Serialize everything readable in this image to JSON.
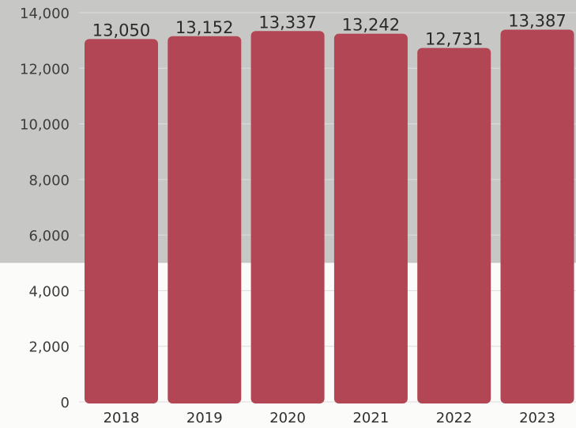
{
  "chart_data": {
    "type": "bar",
    "categories": [
      "2018",
      "2019",
      "2020",
      "2021",
      "2022",
      "2023"
    ],
    "values": [
      13050,
      13152,
      13337,
      13242,
      12731,
      13387
    ],
    "data_labels": [
      "13,050",
      "13,152",
      "13,337",
      "13,242",
      "12,731",
      "13,387"
    ],
    "title": "",
    "xlabel": "",
    "ylabel": "",
    "ylim": [
      0,
      14000
    ],
    "yticks": [
      0,
      2000,
      4000,
      6000,
      8000,
      10000,
      12000,
      14000
    ],
    "ytick_labels": [
      "0",
      "2,000",
      "4,000",
      "6,000",
      "8,000",
      "10,000",
      "12,000",
      "14,000"
    ],
    "shaded_band_from": 5000,
    "grid": true,
    "legend": "none",
    "colors": {
      "bar": "#b24655",
      "band": "#c7c7c5",
      "background": "#fbfbf9",
      "grid": "#dcdcdc"
    }
  }
}
